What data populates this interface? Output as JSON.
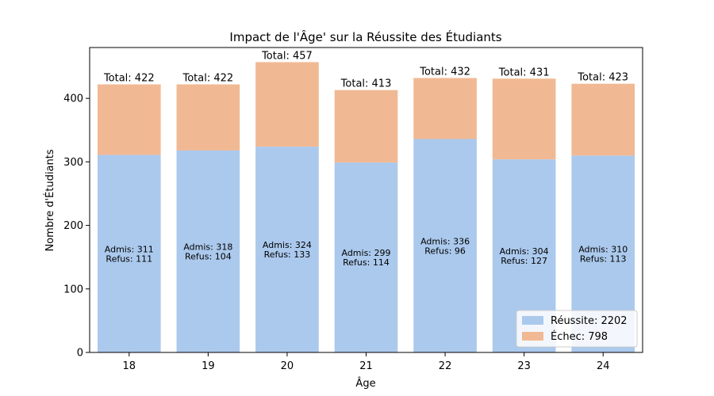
{
  "chart_data": {
    "type": "bar",
    "stacked": true,
    "title": "Impact de l'Âge' sur la Réussite des Étudiants",
    "xlabel": "Âge",
    "ylabel": "Nombre d'Étudiants",
    "ylim": [
      0,
      480
    ],
    "yticks": [
      0,
      100,
      200,
      300,
      400
    ],
    "grid": false,
    "legend_position": "lower-right",
    "categories": [
      "18",
      "19",
      "20",
      "21",
      "22",
      "23",
      "24"
    ],
    "series": [
      {
        "name": "Réussite: 2202",
        "color": "#abc9ed",
        "values": [
          311,
          318,
          324,
          299,
          336,
          304,
          310
        ]
      },
      {
        "name": "Échec: 798",
        "color": "#f1b993",
        "values": [
          111,
          104,
          133,
          114,
          96,
          127,
          113
        ]
      }
    ],
    "total_labels": [
      "Total: 422",
      "Total: 422",
      "Total: 457",
      "Total: 413",
      "Total: 432",
      "Total: 431",
      "Total: 423"
    ],
    "admis_labels": [
      "Admis: 311",
      "Admis: 318",
      "Admis: 324",
      "Admis: 299",
      "Admis: 336",
      "Admis: 304",
      "Admis: 310"
    ],
    "refus_labels": [
      "Refus: 111",
      "Refus: 104",
      "Refus: 133",
      "Refus: 114",
      "Refus: 96",
      "Refus: 127",
      "Refus: 113"
    ]
  }
}
